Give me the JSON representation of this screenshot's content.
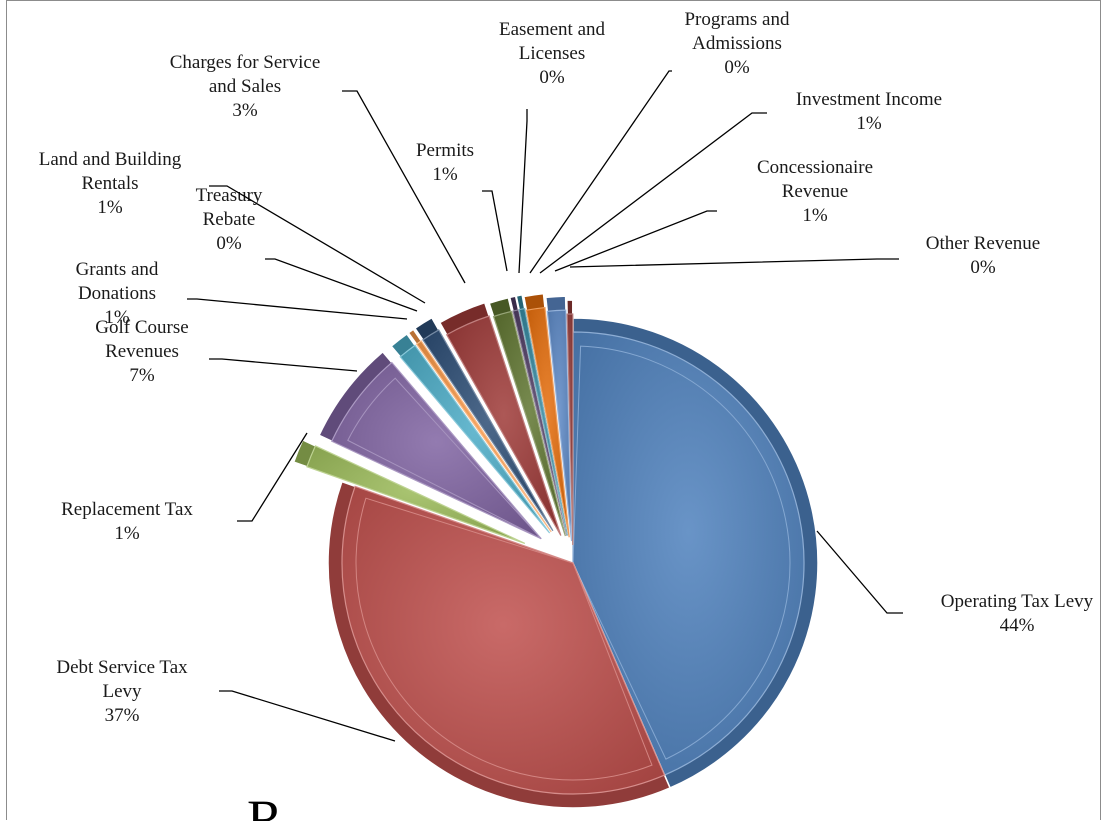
{
  "chart_data": {
    "type": "pie",
    "exploded": true,
    "slices": [
      {
        "label": "Operating Tax Levy",
        "value": 44,
        "value_label": "44%",
        "color": "#4f81bd"
      },
      {
        "label": "Debt Service Tax Levy",
        "value": 37,
        "value_label": "37%",
        "color": "#c0504d"
      },
      {
        "label": "Replacement Tax",
        "value": 1,
        "value_label": "1%",
        "color": "#9bbb59"
      },
      {
        "label": "Golf Course Revenues",
        "value": 7,
        "value_label": "7%",
        "color": "#8064a2"
      },
      {
        "label": "Grants and Donations",
        "value": 1,
        "value_label": "1%",
        "color": "#4bacc6"
      },
      {
        "label": "Treasury Rebate",
        "value": 0,
        "value_label": "0%",
        "color": "#f79646"
      },
      {
        "label": "Land and Building Rentals",
        "value": 1,
        "value_label": "1%",
        "color": "#2c4d75"
      },
      {
        "label": "Charges for Service and Sales",
        "value": 3,
        "value_label": "3%",
        "color": "#9e3a38"
      },
      {
        "label": "Permits",
        "value": 1,
        "value_label": "1%",
        "color": "#5f7530"
      },
      {
        "label": "Easement and Licenses",
        "value": 0,
        "value_label": "0%",
        "color": "#4d3b62"
      },
      {
        "label": "Programs and Admissions",
        "value": 0,
        "value_label": "0%",
        "color": "#31859c"
      },
      {
        "label": "Investment Income",
        "value": 1,
        "value_label": "1%",
        "color": "#e46c0a"
      },
      {
        "label": "Concessionaire Revenue",
        "value": 1,
        "value_label": "1%",
        "color": "#5b87c4"
      },
      {
        "label": "Other Revenue",
        "value": 0,
        "value_label": "0%",
        "color": "#8e3634"
      }
    ],
    "cut_off_title_fragment": "R"
  }
}
